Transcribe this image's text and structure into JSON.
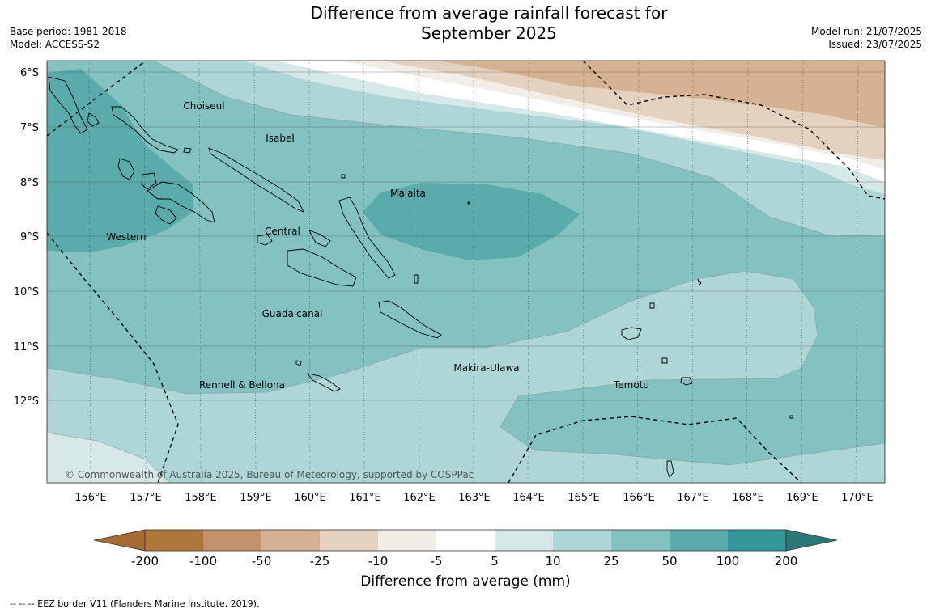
{
  "title_line1": "Difference from average rainfall forecast for",
  "title_line2": "September 2025",
  "base_period": "Base period: 1981-2018",
  "model": "Model: ACCESS-S2",
  "model_run": "Model run: 21/07/2025",
  "issued": "Issued: 23/07/2025",
  "credit": "© Commonwealth of Australia 2025, Bureau of Meteorology, supported by COSPPac",
  "lat_labels": [
    "6°S",
    "7°S",
    "8°S",
    "9°S",
    "10°S",
    "11°S",
    "12°S"
  ],
  "lon_labels": [
    "156°E",
    "157°E",
    "158°E",
    "159°E",
    "160°E",
    "161°E",
    "162°E",
    "163°E",
    "164°E",
    "165°E",
    "166°E",
    "167°E",
    "168°E",
    "169°E",
    "170°E"
  ],
  "place_labels": [
    "Choiseul",
    "Isabel",
    "Malaita",
    "Western",
    "Central",
    "Guadalcanal",
    "Makira-Ulawa",
    "Rennell & Bellona",
    "Temotu"
  ],
  "colorbar": {
    "title": "Difference from average (mm)",
    "ticks": [
      "-200",
      "-100",
      "-50",
      "-25",
      "-10",
      "-5",
      "5",
      "10",
      "25",
      "50",
      "100",
      "200"
    ],
    "colors": [
      "#a56b33",
      "#b0773c",
      "#c4926a",
      "#d6b294",
      "#e4d1bf",
      "#f2ede7",
      "#ffffff",
      "#d6e8e7",
      "#aed6d6",
      "#84c2c2",
      "#5aabac",
      "#32989a",
      "#2b7879"
    ]
  },
  "eez_note": "--  --  -- EEZ border V11 (Flanders Marine Institute, 2019)."
}
